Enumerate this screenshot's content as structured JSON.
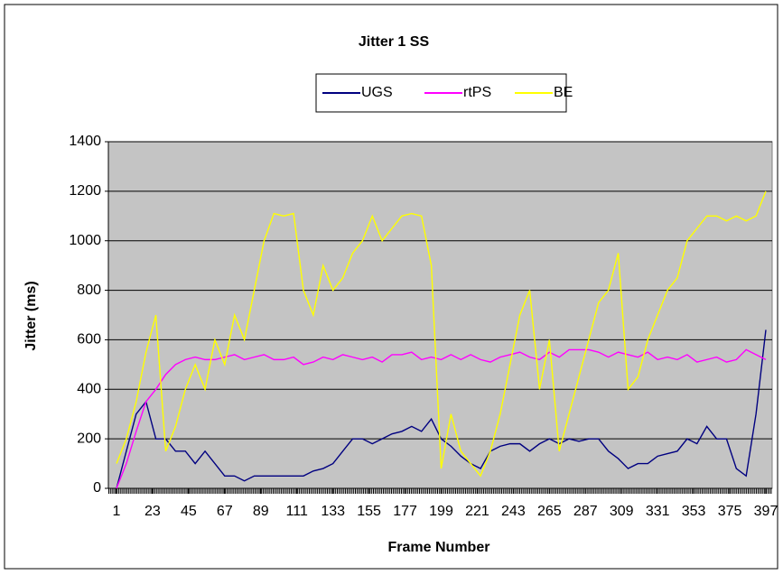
{
  "chart_data": {
    "type": "line",
    "title": "Jitter 1 SS",
    "x_label": "Frame Number",
    "y_label": "Jitter (ms)",
    "x": [
      1,
      7,
      13,
      19,
      25,
      31,
      37,
      43,
      49,
      55,
      61,
      67,
      73,
      79,
      85,
      91,
      97,
      103,
      109,
      115,
      121,
      127,
      133,
      139,
      145,
      151,
      157,
      163,
      169,
      175,
      181,
      187,
      193,
      199,
      205,
      211,
      217,
      223,
      229,
      235,
      241,
      247,
      253,
      259,
      265,
      271,
      277,
      283,
      289,
      295,
      301,
      307,
      313,
      319,
      325,
      331,
      337,
      343,
      349,
      355,
      361,
      367,
      373,
      379,
      385,
      391,
      397
    ],
    "xlim": [
      1,
      397
    ],
    "xticks": [
      1,
      23,
      45,
      67,
      89,
      111,
      133,
      155,
      177,
      199,
      221,
      243,
      265,
      287,
      309,
      331,
      353,
      375,
      397
    ],
    "ylim": [
      0,
      1400
    ],
    "yticks": [
      0,
      200,
      400,
      600,
      800,
      1000,
      1200,
      1400
    ],
    "grid": true,
    "series": [
      {
        "name": "UGS",
        "color": "#000080",
        "values": [
          0,
          150,
          300,
          350,
          200,
          200,
          150,
          150,
          100,
          150,
          100,
          50,
          50,
          30,
          50,
          50,
          50,
          50,
          50,
          50,
          70,
          80,
          100,
          150,
          200,
          200,
          180,
          200,
          220,
          230,
          250,
          230,
          280,
          200,
          170,
          130,
          100,
          80,
          150,
          170,
          180,
          180,
          150,
          180,
          200,
          180,
          200,
          190,
          200,
          200,
          150,
          120,
          80,
          100,
          100,
          130,
          140,
          150,
          200,
          180,
          250,
          200,
          200,
          80,
          50,
          300,
          640
        ]
      },
      {
        "name": "rtPS",
        "color": "#ff00ff",
        "values": [
          0,
          100,
          230,
          350,
          400,
          460,
          500,
          520,
          530,
          520,
          520,
          530,
          540,
          520,
          530,
          540,
          520,
          520,
          530,
          500,
          510,
          530,
          520,
          540,
          530,
          520,
          530,
          510,
          540,
          540,
          550,
          520,
          530,
          520,
          540,
          520,
          540,
          520,
          510,
          530,
          540,
          550,
          530,
          520,
          550,
          530,
          560,
          560,
          560,
          550,
          530,
          550,
          540,
          530,
          550,
          520,
          530,
          520,
          540,
          510,
          520,
          530,
          510,
          520,
          560,
          540,
          520
        ]
      },
      {
        "name": "BE",
        "color": "#ffff00",
        "values": [
          100,
          200,
          350,
          550,
          700,
          150,
          250,
          400,
          500,
          400,
          600,
          500,
          700,
          600,
          800,
          1000,
          1110,
          1100,
          1110,
          800,
          700,
          900,
          800,
          850,
          950,
          1000,
          1100,
          1000,
          1050,
          1100,
          1110,
          1100,
          900,
          80,
          300,
          150,
          100,
          50,
          150,
          300,
          500,
          700,
          800,
          400,
          600,
          150,
          300,
          450,
          600,
          750,
          800,
          950,
          400,
          450,
          600,
          700,
          800,
          850,
          1000,
          1050,
          1100,
          1100,
          1080,
          1100,
          1080,
          1100,
          1200
        ]
      }
    ]
  }
}
